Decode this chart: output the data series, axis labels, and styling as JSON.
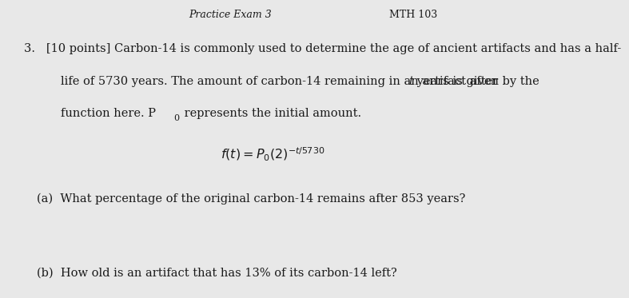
{
  "background_color": "#e8e8e8",
  "text_color": "#1a1a1a",
  "font_size_body": 10.5,
  "font_size_formula": 11.5,
  "line1": "3.   [10 points] Carbon-14 is commonly used to determine the age of ancient artifacts and has a half-",
  "line2": "     life of 5730 years. The amount of carbon-14 remaining in an artifact after  t  years is given by the",
  "line3": "     function here. P₀ represents the initial amount.",
  "formula": "$f(t) = P_0(2)^{-t/5730}$",
  "part_a": "(a)  What percentage of the original carbon-14 remains after 853 years?",
  "part_b": "(b)  How old is an artifact that has 13% of its carbon-14 left?",
  "header_partial_left": "Practice Exam 3",
  "header_partial_right": "MTH 103"
}
